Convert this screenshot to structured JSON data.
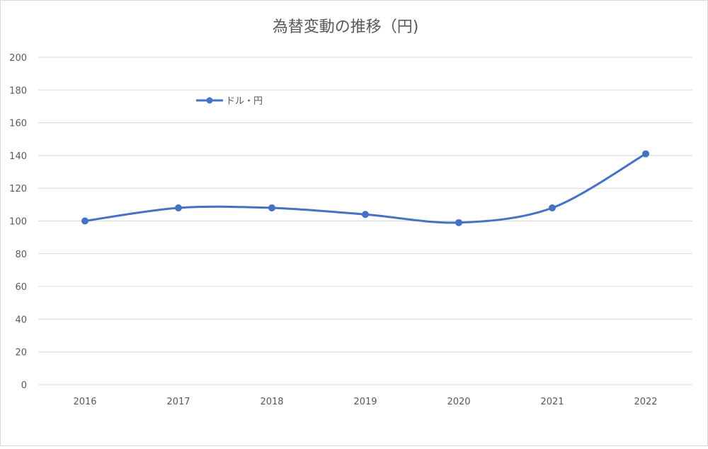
{
  "chart_data": {
    "type": "line",
    "title": "為替変動の推移（円)",
    "categories": [
      "2016",
      "2017",
      "2018",
      "2019",
      "2020",
      "2021",
      "2022"
    ],
    "series": [
      {
        "name": "ドル・円",
        "values": [
          100,
          108,
          108,
          104,
          99,
          108,
          141
        ]
      }
    ],
    "ylim": [
      0,
      200
    ],
    "yticks": [
      0,
      20,
      40,
      60,
      80,
      100,
      120,
      140,
      160,
      180,
      200
    ],
    "grid": true,
    "legend_position": "top-left",
    "colors": {
      "series": "#4472c4",
      "grid": "#d9d9d9",
      "text": "#595959"
    }
  }
}
